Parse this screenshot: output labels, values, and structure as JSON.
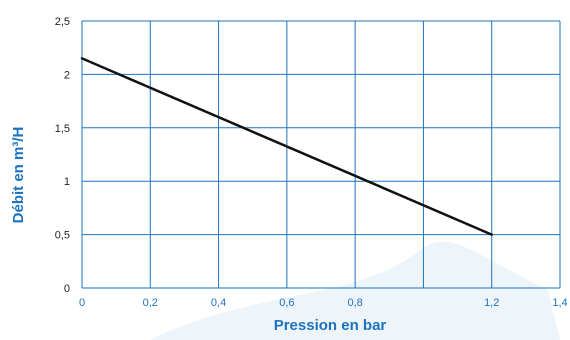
{
  "chart_data": {
    "type": "line",
    "title": "",
    "xlabel": "Pression en bar",
    "ylabel": "Débit en m³/H",
    "xlim": [
      0,
      1.4
    ],
    "ylim": [
      0,
      2.5
    ],
    "x_ticks": [
      "0",
      "0,2",
      "0,4",
      "0,6",
      "0,8",
      "1,2",
      "1,4"
    ],
    "x_tick_values": [
      0,
      0.2,
      0.4,
      0.6,
      0.8,
      1.2,
      1.4
    ],
    "x_grid_values": [
      0,
      0.2,
      0.4,
      0.6,
      0.8,
      1.0,
      1.2,
      1.4
    ],
    "y_ticks": [
      "0",
      "0,5",
      "1",
      "1,5",
      "2",
      "2,5"
    ],
    "y_tick_values": [
      0,
      0.5,
      1,
      1.5,
      2,
      2.5
    ],
    "grid": true,
    "series": [
      {
        "x": [
          0,
          1.2
        ],
        "y": [
          2.15,
          0.5
        ]
      }
    ],
    "colors": {
      "grid": "#1e73be",
      "line": "#111111",
      "axis_text": "#1e73be"
    }
  }
}
